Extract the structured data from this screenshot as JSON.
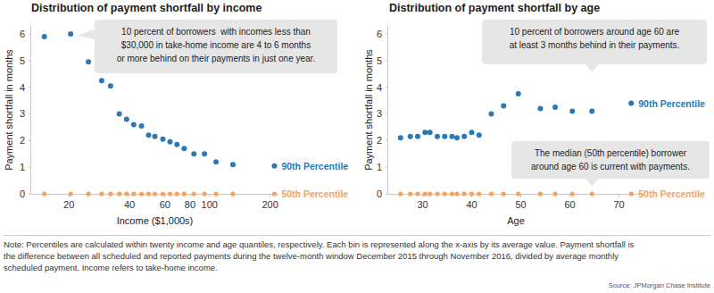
{
  "chart_data": [
    {
      "type": "scatter",
      "title": "Distribution of payment shortfall by income",
      "x_label": "Income ($1,000s)",
      "y_label": "Payment shortfall in months",
      "log": "x",
      "grid": false,
      "marker": "circle",
      "xlim": [
        13,
        220
      ],
      "xticks": [
        20,
        40,
        60,
        80,
        100,
        200
      ],
      "ylim": [
        0,
        6.3
      ],
      "yticks": [
        0,
        1,
        2,
        3,
        4,
        5,
        6
      ],
      "annotations": [
        [
          "10 percent of borrowers  with incomes less than",
          "$30,000 in take-home income are 4 to 6 months",
          "or more behind on their payments in just one year."
        ]
      ],
      "series": [
        {
          "name": "90th Percentile",
          "color": "#2b78b5",
          "x": [
            15.1,
            20.4,
            25,
            29.1,
            32.2,
            35.6,
            38.7,
            42,
            45.9,
            49.8,
            53.5,
            58.6,
            63.6,
            68.9,
            74.8,
            83.6,
            94.4,
            107.7,
            130.6,
            210
          ],
          "values": [
            5.9,
            6.0,
            4.95,
            4.25,
            4.05,
            3.0,
            2.8,
            2.6,
            2.55,
            2.2,
            2.15,
            2.05,
            1.95,
            1.85,
            1.7,
            1.5,
            1.5,
            1.2,
            1.1,
            1.05
          ]
        },
        {
          "name": "50th Percentile",
          "color": "#f5a25d",
          "x": [
            15.1,
            20.4,
            25,
            29.1,
            32.2,
            35.6,
            38.7,
            42,
            45.9,
            49.8,
            53.5,
            58.6,
            63.6,
            68.9,
            74.8,
            83.6,
            94.4,
            107.7,
            130.6,
            210
          ],
          "values": [
            0,
            0,
            0,
            0,
            0,
            0,
            0,
            0,
            0,
            0,
            0,
            0,
            0,
            0,
            0,
            0,
            0,
            0,
            0,
            0
          ]
        }
      ]
    },
    {
      "type": "scatter",
      "title": "Distribution of payment shortfall by age",
      "x_label": "Age",
      "y_label": "Payment shortfall in months",
      "grid": false,
      "marker": "circle",
      "xlim": [
        23,
        75
      ],
      "xticks": [
        30,
        40,
        50,
        60,
        70
      ],
      "ylim": [
        0,
        6.3
      ],
      "yticks": [
        0,
        1,
        2,
        3,
        4,
        5,
        6
      ],
      "annotations": [
        [
          "10 percent of borrowers around age 60 are",
          "at least 3 months behind in their payments."
        ],
        [
          "The median (50th percentile) borrower",
          "around age 60 is current with payments."
        ]
      ],
      "series": [
        {
          "name": "90th Percentile",
          "color": "#2b78b5",
          "x": [
            25.5,
            27.5,
            29,
            30.5,
            31.5,
            33,
            34.5,
            36,
            37,
            38.5,
            40,
            41.5,
            44,
            46.5,
            49.5,
            54,
            57,
            60.5,
            64.5,
            72.5
          ],
          "values": [
            2.1,
            2.15,
            2.15,
            2.3,
            2.3,
            2.15,
            2.15,
            2.15,
            2.1,
            2.15,
            2.3,
            2.2,
            3.0,
            3.3,
            3.75,
            3.2,
            3.25,
            3.1,
            3.1,
            3.4
          ]
        },
        {
          "name": "50th Percentile",
          "color": "#f5a25d",
          "x": [
            25.5,
            27.5,
            29,
            30.5,
            31.5,
            33,
            34.5,
            36,
            37,
            38.5,
            40,
            41.5,
            44,
            46.5,
            49.5,
            54,
            57,
            60.5,
            64.5,
            72.5
          ],
          "values": [
            0,
            0,
            0,
            0,
            0,
            0,
            0,
            0,
            0,
            0,
            0,
            0,
            0,
            0,
            0,
            0,
            0,
            0,
            0,
            0
          ]
        }
      ]
    }
  ],
  "note": [
    "Note: Percentiles are calculated within twenty income and age quantiles, respectively. Each bin is represented along the x-axis by its average value. Payment shortfall is",
    "the difference between all scheduled and reported payments during the twelve-month window December 2015 through November 2016, divided by average monthly",
    "scheduled payment. Income refers to take-home income."
  ],
  "source": "Source: JPMorgan Chase Institute"
}
